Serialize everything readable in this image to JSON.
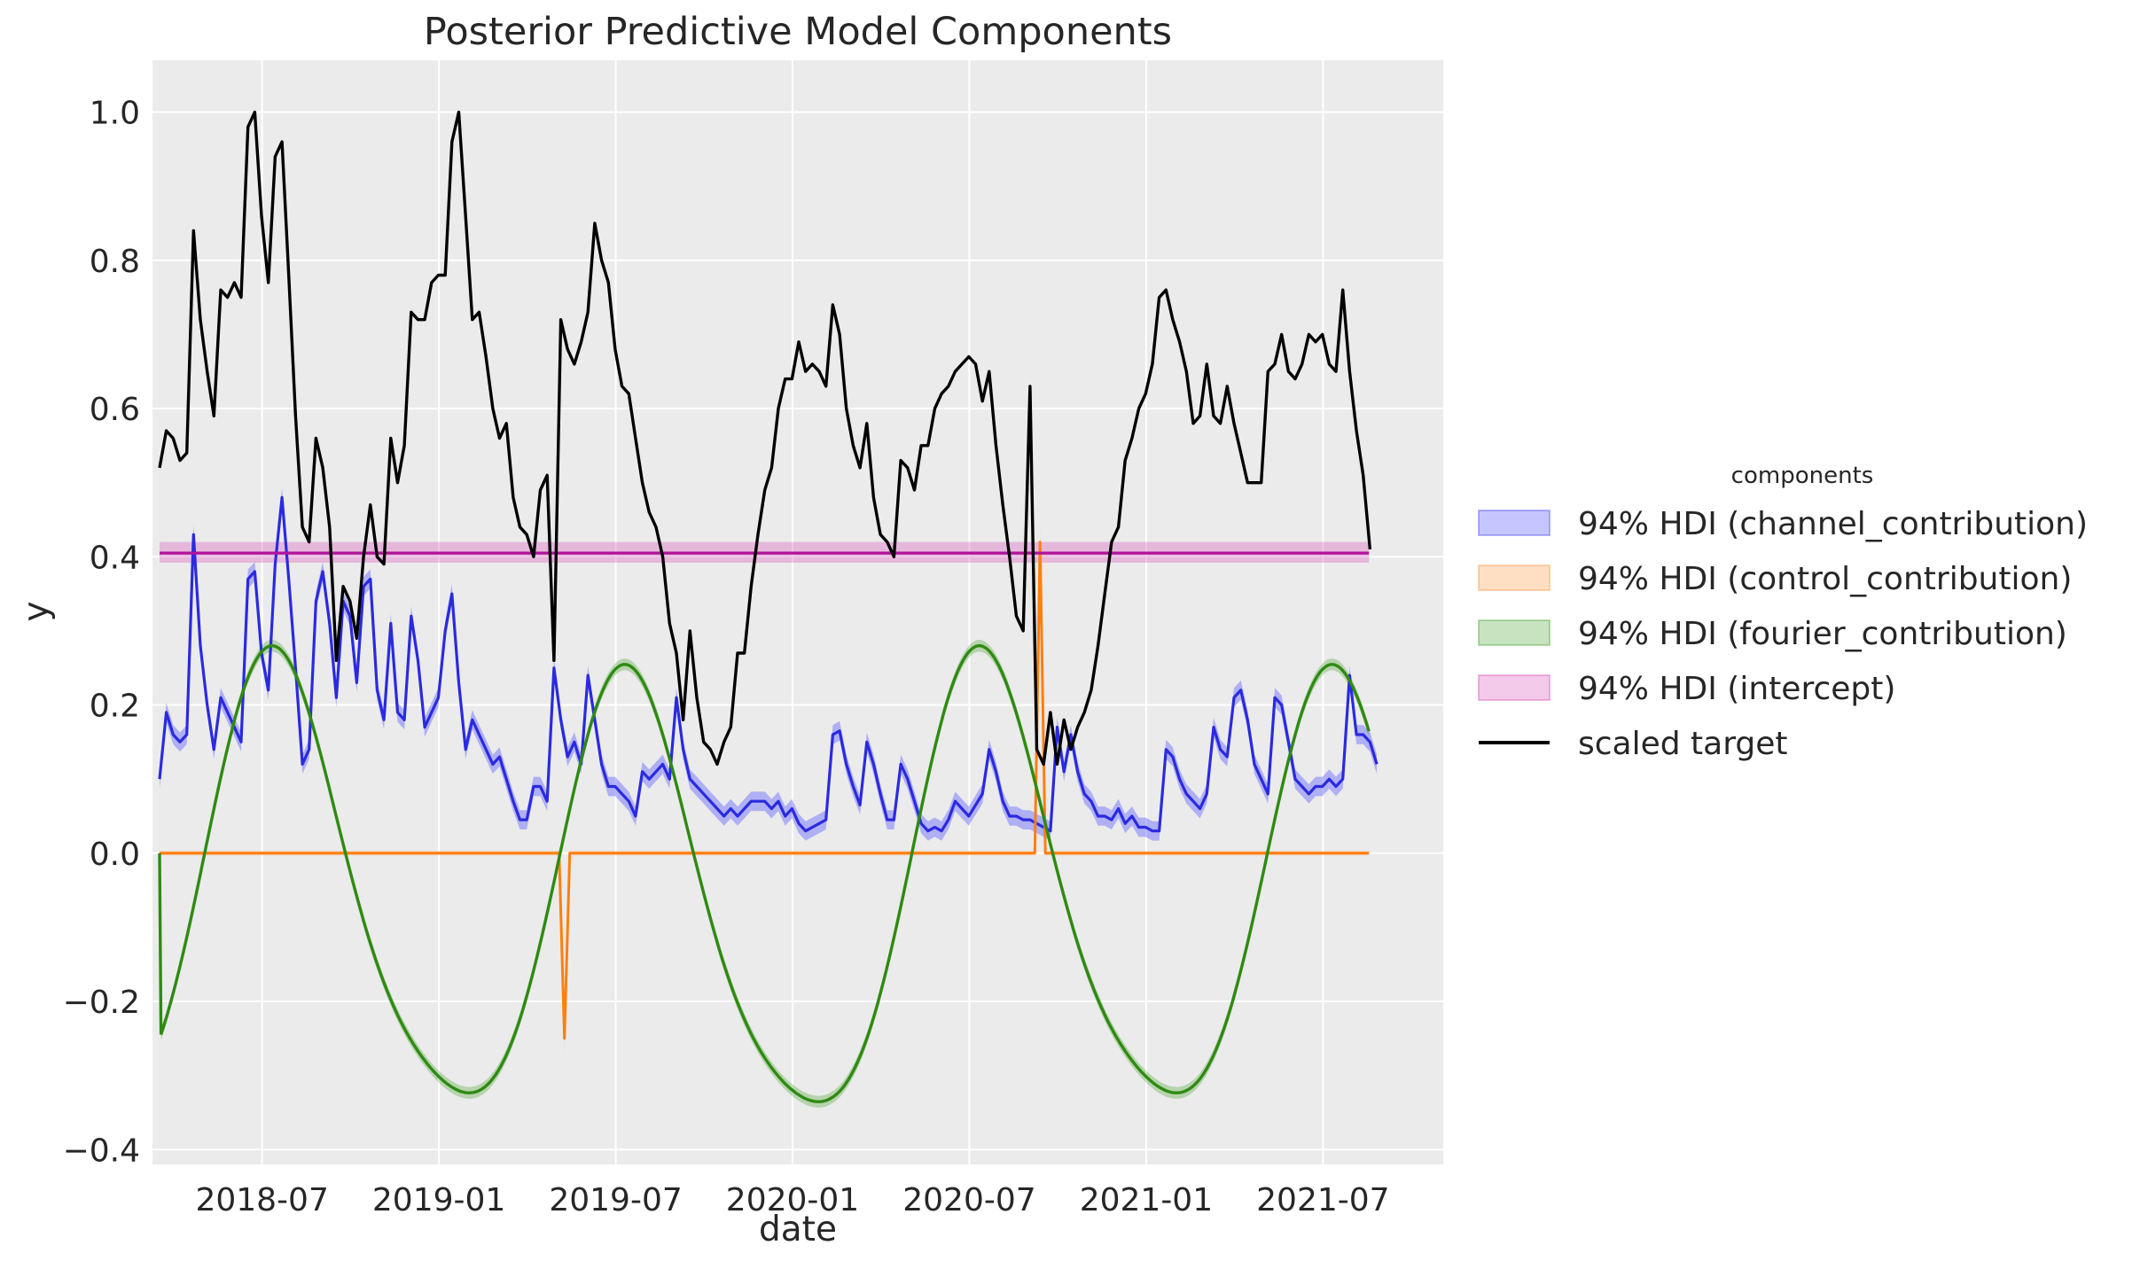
{
  "chart_data": {
    "type": "line",
    "title": "Posterior Predictive Model Components",
    "xlabel": "date",
    "ylabel": "y",
    "ylim": [
      -0.42,
      1.07
    ],
    "x_range_months": [
      2018.19,
      2021.84
    ],
    "grid": true,
    "xticks": [
      {
        "label": "2018-07",
        "value": 2018.5
      },
      {
        "label": "2019-01",
        "value": 2019.0
      },
      {
        "label": "2019-07",
        "value": 2019.5
      },
      {
        "label": "2020-01",
        "value": 2020.0
      },
      {
        "label": "2020-07",
        "value": 2020.5
      },
      {
        "label": "2021-01",
        "value": 2021.0
      },
      {
        "label": "2021-07",
        "value": 2021.5
      }
    ],
    "yticks": [
      {
        "label": "−0.4",
        "value": -0.4
      },
      {
        "label": "−0.2",
        "value": -0.2
      },
      {
        "label": "0.0",
        "value": 0.0
      },
      {
        "label": "0.2",
        "value": 0.2
      },
      {
        "label": "0.4",
        "value": 0.4
      },
      {
        "label": "0.6",
        "value": 0.6
      },
      {
        "label": "0.8",
        "value": 0.8
      },
      {
        "label": "1.0",
        "value": 1.0
      }
    ],
    "legend": {
      "title": "components",
      "position": "center-right",
      "entries": [
        {
          "label": "94% HDI (channel_contribution)",
          "kind": "band",
          "color": "#3333ff"
        },
        {
          "label": "94% HDI (control_contribution)",
          "kind": "band",
          "color": "#ff8c2a"
        },
        {
          "label": "94% HDI (fourier_contribution)",
          "kind": "band",
          "color": "#3a9a1e"
        },
        {
          "label": "94% HDI (intercept)",
          "kind": "band",
          "color": "#d63fb5"
        },
        {
          "label": "scaled target",
          "kind": "line",
          "color": "#000000"
        }
      ]
    },
    "series": [
      {
        "name": "channel_contribution",
        "color": "#2a2ae0",
        "band_color": "#6666ff",
        "band_halfwidth": 0.013,
        "x_start": 2018.21,
        "x_step": 0.01923,
        "values": [
          0.1,
          0.19,
          0.16,
          0.15,
          0.16,
          0.43,
          0.28,
          0.2,
          0.14,
          0.21,
          0.19,
          0.17,
          0.15,
          0.37,
          0.38,
          0.27,
          0.22,
          0.39,
          0.48,
          0.37,
          0.25,
          0.12,
          0.14,
          0.34,
          0.38,
          0.31,
          0.21,
          0.34,
          0.32,
          0.23,
          0.36,
          0.37,
          0.22,
          0.18,
          0.31,
          0.19,
          0.18,
          0.32,
          0.26,
          0.17,
          0.19,
          0.21,
          0.3,
          0.35,
          0.23,
          0.14,
          0.18,
          0.16,
          0.14,
          0.12,
          0.13,
          0.1,
          0.07,
          0.045,
          0.045,
          0.09,
          0.09,
          0.07,
          0.25,
          0.18,
          0.13,
          0.15,
          0.12,
          0.24,
          0.18,
          0.12,
          0.09,
          0.09,
          0.08,
          0.07,
          0.05,
          0.11,
          0.1,
          0.11,
          0.12,
          0.1,
          0.21,
          0.14,
          0.1,
          0.09,
          0.08,
          0.07,
          0.06,
          0.05,
          0.06,
          0.05,
          0.06,
          0.07,
          0.07,
          0.07,
          0.06,
          0.07,
          0.05,
          0.06,
          0.04,
          0.03,
          0.035,
          0.04,
          0.045,
          0.16,
          0.165,
          0.12,
          0.09,
          0.065,
          0.15,
          0.12,
          0.08,
          0.045,
          0.045,
          0.12,
          0.1,
          0.07,
          0.04,
          0.03,
          0.035,
          0.03,
          0.045,
          0.07,
          0.06,
          0.05,
          0.065,
          0.08,
          0.14,
          0.11,
          0.07,
          0.05,
          0.05,
          0.045,
          0.045,
          0.04,
          0.035,
          0.03,
          0.17,
          0.11,
          0.16,
          0.11,
          0.08,
          0.07,
          0.05,
          0.05,
          0.045,
          0.06,
          0.04,
          0.05,
          0.035,
          0.035,
          0.03,
          0.03,
          0.14,
          0.13,
          0.1,
          0.08,
          0.07,
          0.06,
          0.08,
          0.17,
          0.14,
          0.13,
          0.21,
          0.22,
          0.18,
          0.12,
          0.1,
          0.08,
          0.21,
          0.2,
          0.15,
          0.1,
          0.09,
          0.08,
          0.09,
          0.09,
          0.1,
          0.09,
          0.1,
          0.24,
          0.16,
          0.16,
          0.15,
          0.12
        ]
      },
      {
        "name": "control_contribution",
        "color": "#ff7f0e",
        "band_color": "#ffa060",
        "points": [
          [
            2018.21,
            0.0
          ],
          [
            2019.34,
            0.0
          ],
          [
            2019.355,
            -0.25
          ],
          [
            2019.37,
            0.0
          ],
          [
            2020.685,
            0.0
          ],
          [
            2020.7,
            0.42
          ],
          [
            2020.715,
            0.0
          ],
          [
            2021.63,
            0.0
          ]
        ]
      },
      {
        "name": "fourier_contribution",
        "color": "#2f8a12",
        "band_color": "#3a9a1e",
        "curve": "fourier",
        "x_start": 2018.21,
        "x_end": 2021.63
      },
      {
        "name": "intercept",
        "color": "#b0139a",
        "band_color": "#d63fb5",
        "value": 0.405,
        "band": [
          0.392,
          0.42
        ],
        "x_start": 2018.21,
        "x_end": 2021.63
      },
      {
        "name": "scaled target",
        "color": "#000000",
        "x_start": 2018.21,
        "x_step": 0.01923,
        "values": [
          0.52,
          0.57,
          0.56,
          0.53,
          0.54,
          0.84,
          0.72,
          0.65,
          0.59,
          0.76,
          0.75,
          0.77,
          0.75,
          0.98,
          1.0,
          0.86,
          0.77,
          0.94,
          0.96,
          0.78,
          0.59,
          0.44,
          0.42,
          0.56,
          0.52,
          0.44,
          0.26,
          0.36,
          0.34,
          0.29,
          0.4,
          0.47,
          0.4,
          0.39,
          0.56,
          0.5,
          0.55,
          0.73,
          0.72,
          0.72,
          0.77,
          0.78,
          0.78,
          0.96,
          1.0,
          0.86,
          0.72,
          0.73,
          0.67,
          0.6,
          0.56,
          0.58,
          0.48,
          0.44,
          0.43,
          0.4,
          0.49,
          0.51,
          0.26,
          0.72,
          0.68,
          0.66,
          0.69,
          0.73,
          0.85,
          0.8,
          0.77,
          0.68,
          0.63,
          0.62,
          0.56,
          0.5,
          0.46,
          0.44,
          0.4,
          0.31,
          0.27,
          0.18,
          0.3,
          0.21,
          0.15,
          0.14,
          0.12,
          0.15,
          0.17,
          0.27,
          0.27,
          0.36,
          0.43,
          0.49,
          0.52,
          0.6,
          0.64,
          0.64,
          0.69,
          0.65,
          0.66,
          0.65,
          0.63,
          0.74,
          0.7,
          0.6,
          0.55,
          0.52,
          0.58,
          0.48,
          0.43,
          0.42,
          0.4,
          0.53,
          0.52,
          0.49,
          0.55,
          0.55,
          0.6,
          0.62,
          0.63,
          0.65,
          0.66,
          0.67,
          0.66,
          0.61,
          0.65,
          0.55,
          0.47,
          0.4,
          0.32,
          0.3,
          0.63,
          0.14,
          0.12,
          0.19,
          0.12,
          0.18,
          0.14,
          0.17,
          0.19,
          0.22,
          0.28,
          0.35,
          0.42,
          0.44,
          0.53,
          0.56,
          0.6,
          0.62,
          0.66,
          0.75,
          0.76,
          0.72,
          0.69,
          0.65,
          0.58,
          0.59,
          0.66,
          0.59,
          0.58,
          0.63,
          0.58,
          0.54,
          0.5,
          0.5,
          0.5,
          0.65,
          0.66,
          0.7,
          0.65,
          0.64,
          0.66,
          0.7,
          0.69,
          0.7,
          0.66,
          0.65,
          0.76,
          0.65,
          0.57,
          0.51,
          0.41
        ]
      }
    ]
  }
}
